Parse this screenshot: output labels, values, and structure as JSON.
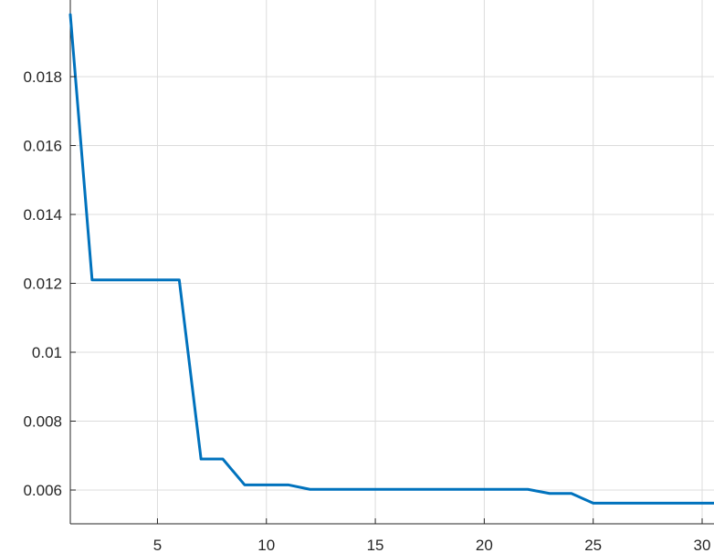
{
  "chart_data": {
    "type": "line",
    "title": "",
    "xlabel": "",
    "ylabel": "",
    "xlim": [
      1,
      30.5
    ],
    "ylim": [
      0.0055,
      0.0198
    ],
    "grid": true,
    "x_ticks": [
      5,
      10,
      15,
      20,
      25,
      30
    ],
    "x_tick_labels": [
      "5",
      "10",
      "15",
      "20",
      "25",
      "30"
    ],
    "y_ticks": [
      0.006,
      0.008,
      0.01,
      0.012,
      0.014,
      0.016,
      0.018
    ],
    "y_tick_labels": [
      "0.006",
      "0.008",
      "0.01",
      "0.012",
      "0.014",
      "0.016",
      "0.018"
    ],
    "series": [
      {
        "color": "#0072bd",
        "x": [
          1,
          2,
          3,
          4,
          5,
          6,
          7,
          8,
          9,
          10,
          11,
          12,
          13,
          14,
          15,
          16,
          17,
          18,
          19,
          20,
          21,
          22,
          23,
          24,
          25,
          26,
          27,
          28,
          29,
          30,
          31
        ],
        "values": [
          0.0198,
          0.0121,
          0.0121,
          0.0121,
          0.0121,
          0.0121,
          0.0069,
          0.0069,
          0.00615,
          0.00615,
          0.00615,
          0.00602,
          0.00602,
          0.00602,
          0.00602,
          0.00602,
          0.00602,
          0.00602,
          0.00602,
          0.00602,
          0.00602,
          0.00602,
          0.0059,
          0.0059,
          0.00562,
          0.00562,
          0.00562,
          0.00562,
          0.00562,
          0.00562,
          0.00562
        ]
      }
    ]
  }
}
